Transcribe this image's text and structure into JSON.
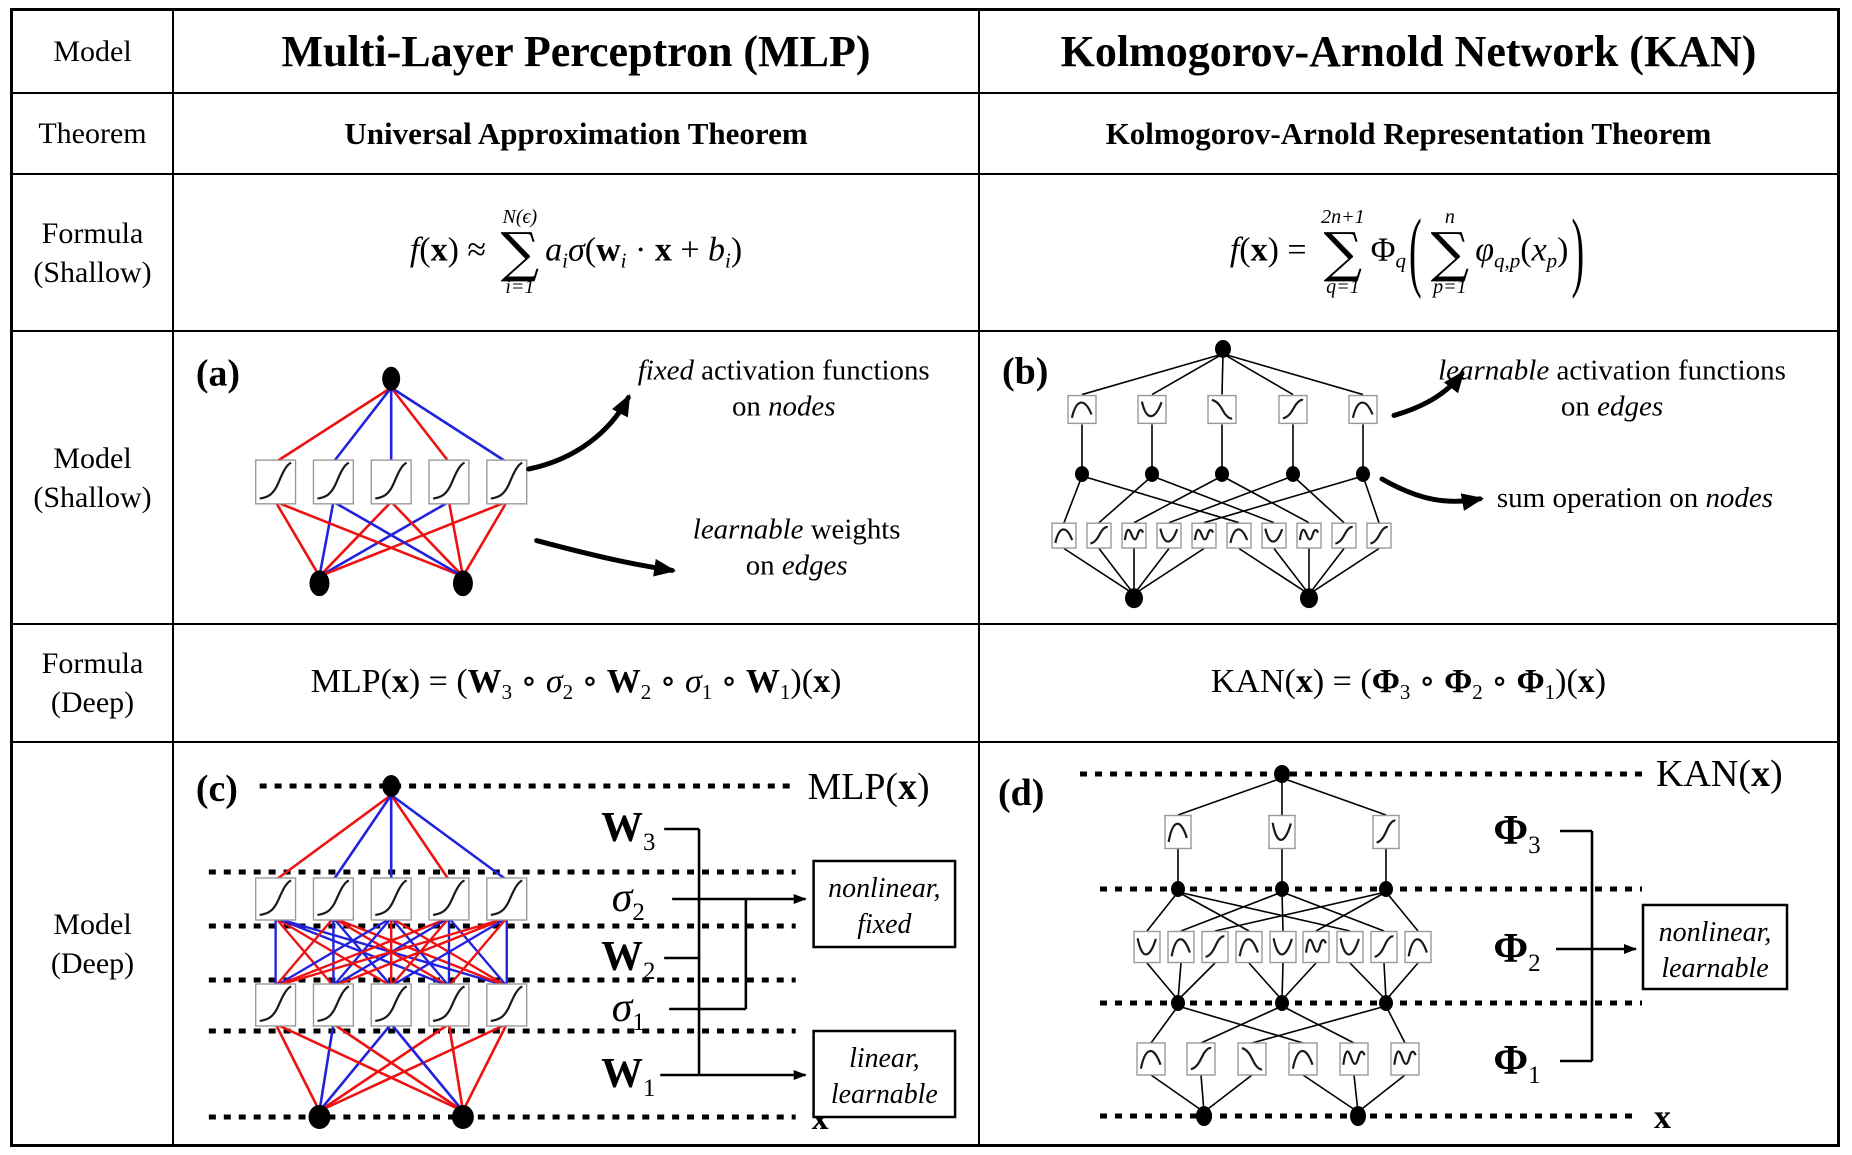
{
  "table": {
    "row_labels": [
      "Model",
      "Theorem",
      "Formula (Shallow)",
      "Model (Shallow)",
      "Formula (Deep)",
      "Model (Deep)"
    ],
    "mlp_title": "Multi-Layer Perceptron (MLP)",
    "kan_title": "Kolmogorov-Arnold Network (KAN)",
    "mlp_theorem": "Universal Approximation Theorem",
    "kan_theorem": "Kolmogorov-Arnold Representation Theorem"
  },
  "colors": {
    "edge_red": "#ee1111",
    "edge_blue": "#2222dd",
    "ink": "#000000",
    "box_stroke": "#999999"
  },
  "formulas": {
    "mlp_shallow": [
      {
        "t": "f",
        "st": "i"
      },
      {
        "t": "(",
        "st": "r"
      },
      {
        "t": "x",
        "st": "b"
      },
      {
        "t": ") ≈ ",
        "st": "r"
      },
      {
        "sum": {
          "top": "N(ϵ)",
          "bot": "i=1"
        }
      },
      {
        "t": "a",
        "st": "i"
      },
      {
        "t": "i",
        "st": "subi"
      },
      {
        "t": "σ",
        "st": "i"
      },
      {
        "t": "(",
        "st": "r"
      },
      {
        "t": "w",
        "st": "b"
      },
      {
        "t": "i",
        "st": "subi"
      },
      {
        "t": " · ",
        "st": "r"
      },
      {
        "t": "x",
        "st": "b"
      },
      {
        "t": " + ",
        "st": "r"
      },
      {
        "t": "b",
        "st": "i"
      },
      {
        "t": "i",
        "st": "subi"
      },
      {
        "t": ")",
        "st": "r"
      }
    ],
    "kan_shallow": [
      {
        "t": "f",
        "st": "i"
      },
      {
        "t": "(",
        "st": "r"
      },
      {
        "t": "x",
        "st": "b"
      },
      {
        "t": ") = ",
        "st": "r"
      },
      {
        "sum": {
          "top": "2n+1",
          "bot": "q=1"
        }
      },
      {
        "t": "Φ",
        "st": "r"
      },
      {
        "t": "q",
        "st": "subi"
      },
      {
        "big": "("
      },
      {
        "sum": {
          "top": "n",
          "bot": "p=1"
        }
      },
      {
        "t": "φ",
        "st": "i"
      },
      {
        "t": "q,p",
        "st": "subi"
      },
      {
        "t": "(",
        "st": "r"
      },
      {
        "t": "x",
        "st": "i"
      },
      {
        "t": "p",
        "st": "subi"
      },
      {
        "t": ")",
        "st": "r"
      },
      {
        "big": ")"
      }
    ],
    "mlp_deep": [
      {
        "t": "MLP(",
        "st": "r"
      },
      {
        "t": "x",
        "st": "b"
      },
      {
        "t": ") = (",
        "st": "r"
      },
      {
        "t": "W",
        "st": "b"
      },
      {
        "t": "3",
        "st": "sub"
      },
      {
        "t": " ∘ ",
        "st": "r"
      },
      {
        "t": "σ",
        "st": "i"
      },
      {
        "t": "2",
        "st": "sub"
      },
      {
        "t": " ∘ ",
        "st": "r"
      },
      {
        "t": "W",
        "st": "b"
      },
      {
        "t": "2",
        "st": "sub"
      },
      {
        "t": " ∘ ",
        "st": "r"
      },
      {
        "t": "σ",
        "st": "i"
      },
      {
        "t": "1",
        "st": "sub"
      },
      {
        "t": " ∘ ",
        "st": "r"
      },
      {
        "t": "W",
        "st": "b"
      },
      {
        "t": "1",
        "st": "sub"
      },
      {
        "t": ")(",
        "st": "r"
      },
      {
        "t": "x",
        "st": "b"
      },
      {
        "t": ")",
        "st": "r"
      }
    ],
    "kan_deep": [
      {
        "t": "KAN(",
        "st": "r"
      },
      {
        "t": "x",
        "st": "b"
      },
      {
        "t": ") = (",
        "st": "r"
      },
      {
        "t": "Φ",
        "st": "b"
      },
      {
        "t": "3",
        "st": "sub"
      },
      {
        "t": " ∘ ",
        "st": "r"
      },
      {
        "t": "Φ",
        "st": "b"
      },
      {
        "t": "2",
        "st": "sub"
      },
      {
        "t": " ∘ ",
        "st": "r"
      },
      {
        "t": "Φ",
        "st": "b"
      },
      {
        "t": "1",
        "st": "sub"
      },
      {
        "t": ")(",
        "st": "r"
      },
      {
        "t": "x",
        "st": "b"
      },
      {
        "t": ")",
        "st": "r"
      }
    ]
  },
  "diagrams": {
    "mlp_shallow": {
      "panel": "(a)",
      "top_edge_colors": "rbbrb",
      "left_input_colors": "rbrbr",
      "right_input_colors": "rbrrr",
      "box_curves": [
        "sig",
        "sig",
        "sig",
        "sig",
        "sig"
      ],
      "annotation_top": [
        [
          {
            "t": "fixed",
            "i": 1
          },
          {
            "t": " activation functions"
          }
        ],
        [
          {
            "t": "on "
          },
          {
            "t": "nodes",
            "i": 1
          }
        ]
      ],
      "annotation_bottom": [
        [
          {
            "t": "learnable",
            "i": 1
          },
          {
            "t": " weights"
          }
        ],
        [
          {
            "t": "on "
          },
          {
            "t": "edges",
            "i": 1
          }
        ]
      ]
    },
    "kan_shallow": {
      "panel": "(b)",
      "top_curves": [
        "bump",
        "dip",
        "fall",
        "rise",
        "bump"
      ],
      "bottom_curves": [
        "bump",
        "rise",
        "wig",
        "dip",
        "wig",
        "bump",
        "dip",
        "wig",
        "rise",
        "rise"
      ],
      "annotation_top": [
        [
          {
            "t": "learnable",
            "i": 1
          },
          {
            "t": " activation functions"
          }
        ],
        [
          {
            "t": "on "
          },
          {
            "t": "edges",
            "i": 1
          }
        ]
      ],
      "annotation_bottom": [
        [
          {
            "t": "sum operation on "
          },
          {
            "t": "nodes",
            "i": 1
          }
        ]
      ]
    },
    "mlp_deep": {
      "panel": "(c)",
      "output_label": [
        {
          "t": "MLP("
        },
        {
          "t": "x",
          "b": 1
        },
        {
          "t": ")"
        }
      ],
      "input_label": [
        {
          "t": "x",
          "b": 1
        }
      ],
      "layer_labels": [
        {
          "main": "W",
          "sub": "3",
          "b": 1
        },
        {
          "main": "σ",
          "sub": "2",
          "i": 1
        },
        {
          "main": "W",
          "sub": "2",
          "b": 1
        },
        {
          "main": "σ",
          "sub": "1",
          "i": 1
        },
        {
          "main": "W",
          "sub": "1",
          "b": 1
        }
      ],
      "w3_colors": "rbbrb",
      "w2_colors": "brrbbrbbrrbbrbrrbrbbrrbrb",
      "w1_left": "rbbrr",
      "w1_right": "rrbrr",
      "box_curves": [
        "sig",
        "sig",
        "sig",
        "sig",
        "sig"
      ],
      "side_boxes": [
        {
          "lines": [
            "nonlinear,",
            "fixed"
          ]
        },
        {
          "lines": [
            "linear,",
            "learnable"
          ]
        }
      ]
    },
    "kan_deep": {
      "panel": "(d)",
      "output_label": [
        {
          "t": "KAN("
        },
        {
          "t": "x",
          "b": 1
        },
        {
          "t": ")"
        }
      ],
      "input_label": [
        {
          "t": "x",
          "b": 1
        }
      ],
      "phi_labels": [
        {
          "main": "Φ",
          "sub": "3",
          "b": 1
        },
        {
          "main": "Φ",
          "sub": "2",
          "b": 1
        },
        {
          "main": "Φ",
          "sub": "1",
          "b": 1
        }
      ],
      "phi3_curves": [
        "bump",
        "dip",
        "rise"
      ],
      "phi2_curves": [
        "dip",
        "bump",
        "rise",
        "bump",
        "dip",
        "wig",
        "dip",
        "rise",
        "bump"
      ],
      "phi1_curves": [
        "bump",
        "rise",
        "fall",
        "bump",
        "wig",
        "wig"
      ],
      "side_box": {
        "lines": [
          "nonlinear,",
          "learnable"
        ]
      }
    }
  }
}
